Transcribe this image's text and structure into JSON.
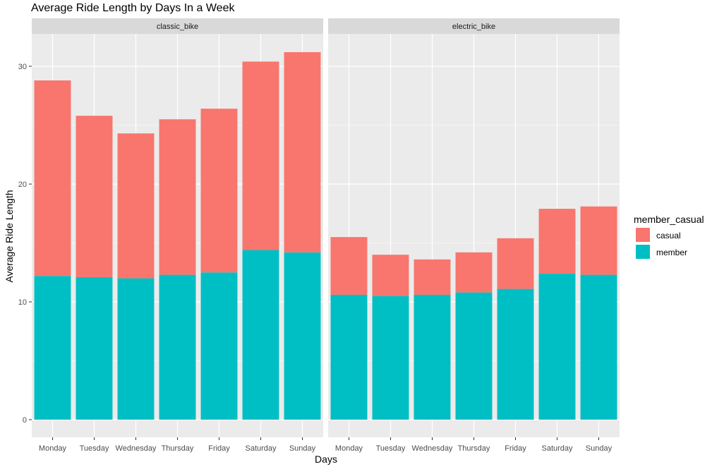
{
  "chart_data": {
    "type": "bar",
    "stacked": true,
    "title": "Average Ride Length by Days In a Week",
    "xlabel": "Days",
    "ylabel": "Average Ride Length",
    "ylim": [
      0,
      32
    ],
    "yticks": [
      0,
      10,
      20,
      30
    ],
    "categories": [
      "Monday",
      "Tuesday",
      "Wednesday",
      "Thursday",
      "Friday",
      "Saturday",
      "Sunday"
    ],
    "legend": {
      "title": "member_casual",
      "position": "right",
      "entries": [
        {
          "name": "casual",
          "color": "#F8766D"
        },
        {
          "name": "member",
          "color": "#00BFC4"
        }
      ]
    },
    "panels": [
      {
        "label": "classic_bike",
        "series": [
          {
            "name": "member",
            "values": [
              12.2,
              12.1,
              12.0,
              12.3,
              12.5,
              14.4,
              14.2
            ]
          },
          {
            "name": "casual",
            "values": [
              16.6,
              13.7,
              12.3,
              13.2,
              13.9,
              16.0,
              17.0
            ]
          }
        ]
      },
      {
        "label": "electric_bike",
        "series": [
          {
            "name": "member",
            "values": [
              10.6,
              10.5,
              10.6,
              10.8,
              11.1,
              12.4,
              12.3
            ]
          },
          {
            "name": "casual",
            "values": [
              4.9,
              3.5,
              3.0,
              3.4,
              4.3,
              5.5,
              5.8
            ]
          }
        ]
      }
    ],
    "grid": true,
    "panel_background": "#EBEBEB",
    "strip_background": "#D9D9D9"
  }
}
